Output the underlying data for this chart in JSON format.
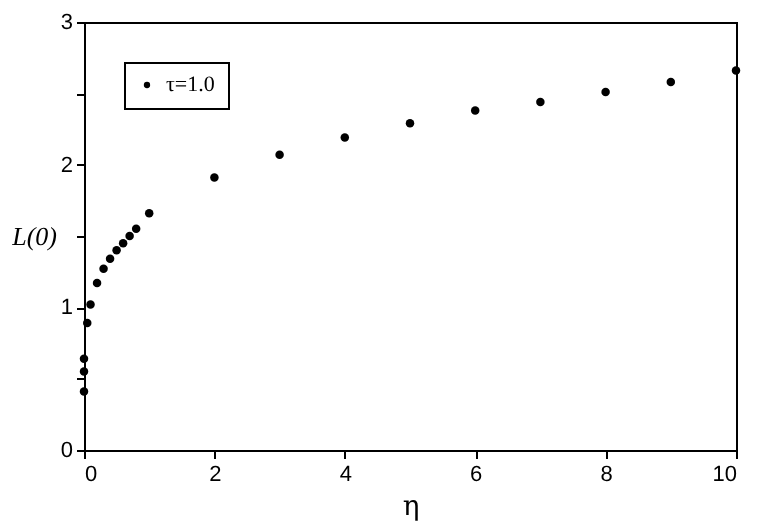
{
  "chart_data": {
    "type": "scatter",
    "xlabel": "η",
    "ylabel": "L(0)",
    "x": [
      0,
      0,
      0,
      0.05,
      0.1,
      0.2,
      0.3,
      0.4,
      0.5,
      0.6,
      0.7,
      0.8,
      1,
      2,
      3,
      4,
      5,
      6,
      7,
      8,
      9,
      10
    ],
    "series": [
      {
        "name": "τ=1.0",
        "color": "#000000",
        "values": [
          0.41,
          0.55,
          0.64,
          0.89,
          1.02,
          1.17,
          1.27,
          1.34,
          1.4,
          1.45,
          1.5,
          1.55,
          1.66,
          1.91,
          2.07,
          2.19,
          2.29,
          2.38,
          2.44,
          2.51,
          2.58,
          2.66
        ]
      }
    ],
    "xlim": [
      0,
      10
    ],
    "xticks": [
      0,
      2,
      4,
      6,
      8,
      10
    ],
    "ylim": [
      0,
      3
    ],
    "yticks": [
      0,
      {
        "value": 0.5,
        "label": null
      },
      1,
      {
        "value": 1.5,
        "label": null
      },
      2,
      {
        "value": 2.5,
        "label": null
      },
      3
    ],
    "grid": false,
    "legend": "top left",
    "marker": "circle"
  }
}
